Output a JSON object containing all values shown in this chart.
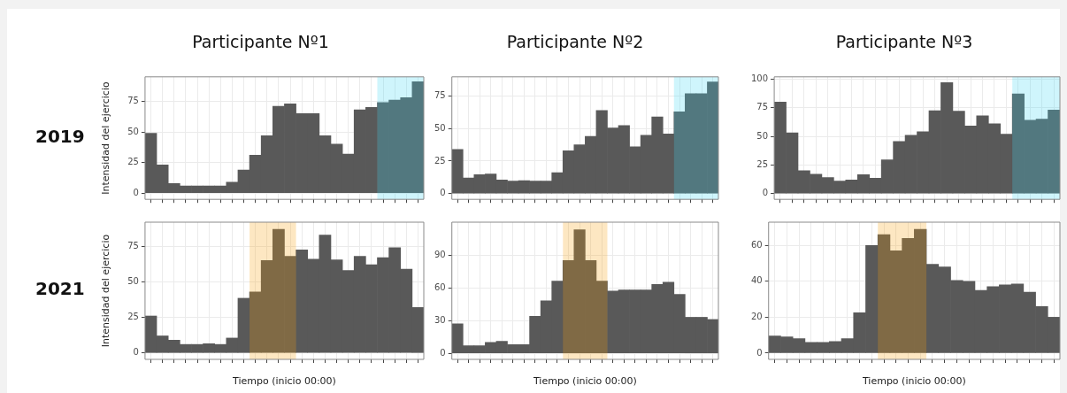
{
  "chart_data": [
    {
      "type": "bar",
      "title": "Participante Nº1",
      "ylabel": "Intensidad del ejercicio",
      "annotations": [
        "2019"
      ],
      "categories": [
        null,
        null,
        null,
        null,
        null,
        null,
        null,
        null,
        null,
        null,
        null,
        null,
        null,
        null,
        null,
        null,
        null,
        null,
        null,
        null,
        null,
        null,
        null,
        null
      ],
      "values": [
        49,
        23,
        8,
        6,
        6,
        6,
        6,
        9,
        19,
        31,
        47,
        71,
        73,
        65,
        65,
        47,
        40,
        32,
        68,
        70,
        74,
        76,
        78,
        91
      ],
      "color": "#595959",
      "ylim": [
        -5,
        95
      ],
      "yticks": [
        0,
        25,
        50,
        75
      ],
      "grid": true,
      "tick_labels": "y"
    },
    {
      "type": "bar",
      "title": "Participante Nº2",
      "categories": [
        null,
        null,
        null,
        null,
        null,
        null,
        null,
        null,
        null,
        null,
        null,
        null,
        null,
        null,
        null,
        null,
        null,
        null,
        null,
        null,
        null,
        null,
        null,
        null
      ],
      "values": [
        34,
        12,
        14.5,
        15,
        10.5,
        9.5,
        10,
        9.5,
        9.5,
        16,
        33,
        37.5,
        44,
        64,
        50.5,
        52.5,
        36,
        45,
        59,
        46,
        63,
        77,
        77,
        86
      ],
      "color": "#595959",
      "ylim": [
        -4.5,
        90
      ],
      "yticks": [
        0,
        25,
        50,
        75
      ],
      "grid": true,
      "tick_labels": "y"
    },
    {
      "type": "bar",
      "title": "Participante Nº3",
      "categories": [
        null,
        null,
        null,
        null,
        null,
        null,
        null,
        null,
        null,
        null,
        null,
        null,
        null,
        null,
        null,
        null,
        null,
        null,
        null,
        null,
        null,
        null,
        null,
        null
      ],
      "values": [
        80,
        53,
        20,
        17,
        14,
        11,
        12,
        16.5,
        13.5,
        29.5,
        45.5,
        51,
        54,
        72.5,
        97,
        72,
        59,
        68,
        61,
        52,
        87,
        64,
        65,
        73
      ],
      "color": "#595959",
      "ylim": [
        -5,
        102
      ],
      "yticks": [
        0,
        25,
        50,
        75,
        100
      ],
      "grid": true,
      "tick_labels": "y"
    },
    {
      "type": "bar",
      "xlabel": "Tiempo (inicio 00:00)",
      "ylabel": "Intensidad del ejercicio",
      "annotations": [
        "2021"
      ],
      "categories": [
        null,
        null,
        null,
        null,
        null,
        null,
        null,
        null,
        null,
        null,
        null,
        null,
        null,
        null,
        null,
        null,
        null,
        null,
        null,
        null,
        null,
        null,
        null,
        null
      ],
      "values": [
        26,
        12,
        9,
        6,
        6,
        6.5,
        6,
        10.5,
        38.5,
        43,
        65,
        87,
        68,
        72.5,
        66,
        83,
        65.5,
        58,
        68,
        62,
        67,
        74,
        59,
        32
      ],
      "color": "#595959",
      "ylim": [
        -4.5,
        92
      ],
      "yticks": [
        0,
        25,
        50,
        75
      ],
      "grid": true,
      "tick_labels": "y"
    },
    {
      "type": "bar",
      "xlabel": "Tiempo (inicio 00:00)",
      "categories": [
        null,
        null,
        null,
        null,
        null,
        null,
        null,
        null,
        null,
        null,
        null,
        null,
        null,
        null,
        null,
        null,
        null,
        null,
        null,
        null,
        null,
        null,
        null,
        null
      ],
      "values": [
        27,
        7,
        7,
        10,
        11,
        8,
        8,
        34,
        48,
        66,
        85,
        113,
        85,
        66,
        57,
        58,
        58,
        58,
        63,
        65,
        54,
        33,
        33,
        31
      ],
      "color": "#595959",
      "ylim": [
        -5.5,
        120
      ],
      "yticks": [
        0,
        30,
        60,
        90
      ],
      "grid": true,
      "tick_labels": "y"
    },
    {
      "type": "bar",
      "xlabel": "Tiempo (inicio 00:00)",
      "categories": [
        null,
        null,
        null,
        null,
        null,
        null,
        null,
        null,
        null,
        null,
        null,
        null,
        null,
        null,
        null,
        null,
        null,
        null,
        null,
        null,
        null,
        null,
        null,
        null
      ],
      "values": [
        9.5,
        9,
        8,
        6,
        6,
        6.5,
        8,
        22.5,
        60,
        66,
        57,
        64,
        69,
        49.5,
        48,
        40.5,
        40,
        35,
        37,
        38,
        38.5,
        34,
        26,
        20
      ],
      "color": "#595959",
      "ylim": [
        -3.5,
        73
      ],
      "yticks": [
        0,
        20,
        40,
        60
      ],
      "grid": true,
      "tick_labels": "y"
    }
  ]
}
